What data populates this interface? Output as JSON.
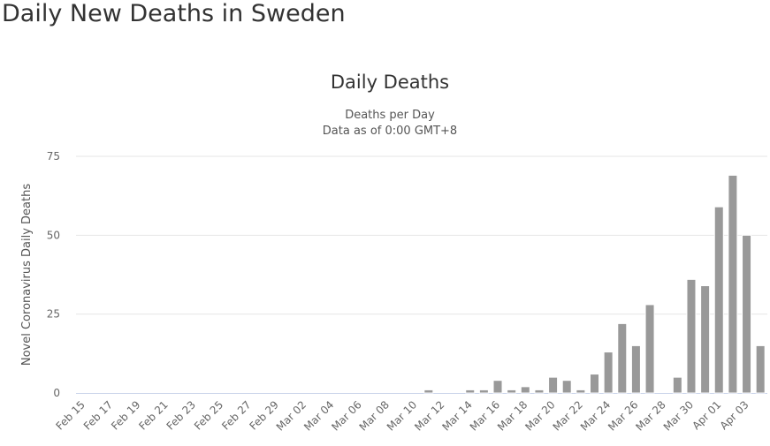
{
  "page_heading": "Daily New Deaths in Sweden",
  "chart_data": {
    "type": "bar",
    "title": "Daily Deaths",
    "subtitle_lines": [
      "Deaths per Day",
      "Data as of 0:00 GMT+8"
    ],
    "xlabel": "",
    "ylabel": "Novel Coronavirus Daily Deaths",
    "ylim": [
      0,
      75
    ],
    "yticks": [
      0,
      25,
      50,
      75
    ],
    "grid": true,
    "legend": "none",
    "bar_color": "#999999",
    "categories": [
      "Feb 15",
      "Feb 16",
      "Feb 17",
      "Feb 18",
      "Feb 19",
      "Feb 20",
      "Feb 21",
      "Feb 22",
      "Feb 23",
      "Feb 24",
      "Feb 25",
      "Feb 26",
      "Feb 27",
      "Feb 28",
      "Feb 29",
      "Mar 01",
      "Mar 02",
      "Mar 03",
      "Mar 04",
      "Mar 05",
      "Mar 06",
      "Mar 07",
      "Mar 08",
      "Mar 09",
      "Mar 10",
      "Mar 11",
      "Mar 12",
      "Mar 13",
      "Mar 14",
      "Mar 15",
      "Mar 16",
      "Mar 17",
      "Mar 18",
      "Mar 19",
      "Mar 20",
      "Mar 21",
      "Mar 22",
      "Mar 23",
      "Mar 24",
      "Mar 25",
      "Mar 26",
      "Mar 27",
      "Mar 28",
      "Mar 29",
      "Mar 30",
      "Mar 31",
      "Apr 01",
      "Apr 02",
      "Apr 03",
      "Apr 04"
    ],
    "values": [
      0,
      0,
      0,
      0,
      0,
      0,
      0,
      0,
      0,
      0,
      0,
      0,
      0,
      0,
      0,
      0,
      0,
      0,
      0,
      0,
      0,
      0,
      0,
      0,
      0,
      1,
      0,
      0,
      1,
      1,
      4,
      1,
      2,
      1,
      5,
      4,
      1,
      6,
      13,
      22,
      15,
      28,
      0,
      5,
      36,
      34,
      59,
      69,
      50,
      15
    ]
  }
}
